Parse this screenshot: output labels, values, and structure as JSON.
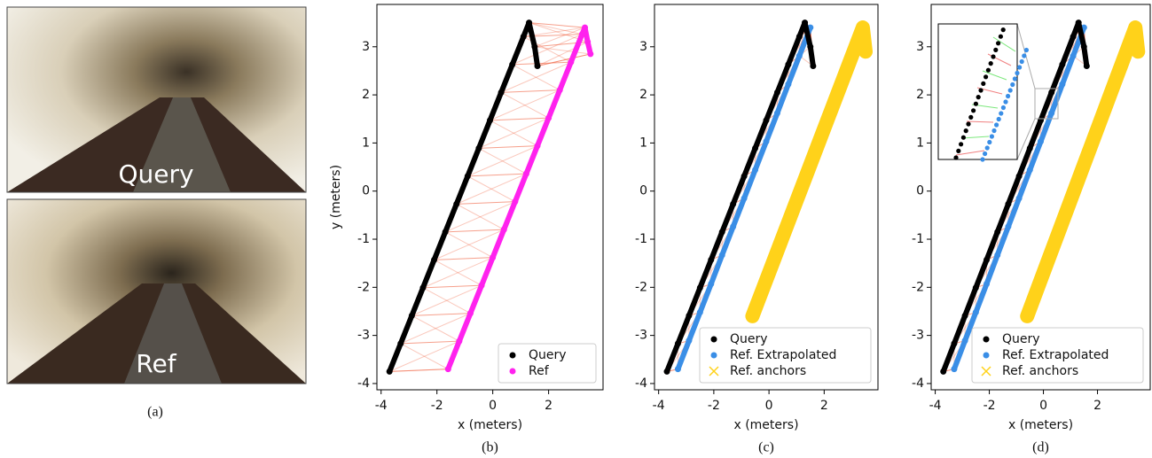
{
  "panel_a": {
    "images": [
      {
        "label": "Query"
      },
      {
        "label": "Ref"
      }
    ],
    "caption": "(a)"
  },
  "chart_data": [
    {
      "type": "scatter",
      "caption": "(b)",
      "xlabel": "x (meters)",
      "ylabel": "y (meters)",
      "xlim": [
        -4.15,
        3.95
      ],
      "ylim": [
        -4.13,
        3.88
      ],
      "xticks": [
        -4,
        -2,
        0,
        2
      ],
      "yticks": [
        -4,
        -3,
        -2,
        -1,
        0,
        1,
        2,
        3
      ],
      "legend": "lower right",
      "links_color": "#f06040",
      "series": [
        {
          "name": "Query",
          "color": "#000000",
          "marker": "o",
          "x": [
            -3.7,
            -3.3,
            -2.9,
            -2.5,
            -2.1,
            -1.7,
            -1.3,
            -0.9,
            -0.5,
            -0.1,
            0.3,
            0.7,
            1.1,
            1.3,
            1.5,
            1.6
          ],
          "y": [
            -3.75,
            -3.17,
            -2.59,
            -2.01,
            -1.43,
            -0.85,
            -0.27,
            0.31,
            0.89,
            1.47,
            2.05,
            2.63,
            3.21,
            3.5,
            3.0,
            2.6
          ]
        },
        {
          "name": "Ref",
          "color": "#ff22ee",
          "marker": "o",
          "x": [
            -1.6,
            -1.2,
            -0.8,
            -0.4,
            0,
            0.4,
            0.8,
            1.2,
            1.6,
            2.0,
            2.4,
            2.8,
            3.2,
            3.3,
            3.4,
            3.5
          ],
          "y": [
            -3.7,
            -3.12,
            -2.54,
            -1.96,
            -1.38,
            -0.8,
            -0.22,
            0.36,
            0.94,
            1.52,
            2.1,
            2.68,
            3.26,
            3.4,
            3.1,
            2.85
          ]
        }
      ]
    },
    {
      "type": "scatter",
      "caption": "(c)",
      "xlabel": "x (meters)",
      "xlim": [
        -4.15,
        3.95
      ],
      "ylim": [
        -4.13,
        3.88
      ],
      "xticks": [
        -4,
        -2,
        0,
        2
      ],
      "yticks": [
        -4,
        -3,
        -2,
        -1,
        0,
        1,
        2,
        3
      ],
      "legend": "lower right",
      "links_color": "#f06040",
      "series": [
        {
          "name": "Query",
          "color": "#000000",
          "marker": "o",
          "x": [
            -3.7,
            -3.3,
            -2.9,
            -2.5,
            -2.1,
            -1.7,
            -1.3,
            -0.9,
            -0.5,
            -0.1,
            0.3,
            0.7,
            1.1,
            1.3,
            1.5,
            1.6
          ],
          "y": [
            -3.75,
            -3.17,
            -2.59,
            -2.01,
            -1.43,
            -0.85,
            -0.27,
            0.31,
            0.89,
            1.47,
            2.05,
            2.63,
            3.21,
            3.5,
            3.0,
            2.6
          ]
        },
        {
          "name": "Ref. Extrapolated",
          "color": "#3a8ee6",
          "marker": "o",
          "x": [
            -3.3,
            -2.9,
            -2.5,
            -2.1,
            -1.7,
            -1.3,
            -0.9,
            -0.5,
            -0.1,
            0.3,
            0.7,
            1.1,
            1.5
          ],
          "y": [
            -3.7,
            -3.11,
            -2.52,
            -1.93,
            -1.33,
            -0.74,
            -0.15,
            0.44,
            1.03,
            1.62,
            2.22,
            2.81,
            3.4
          ]
        },
        {
          "name": "Ref. anchors",
          "color": "#ffd21a",
          "marker": "x",
          "x": [
            -0.6,
            -0.2,
            0.2,
            0.6,
            1.0,
            1.4,
            1.8,
            2.2,
            2.6,
            3.0,
            3.4,
            3.5
          ],
          "y": [
            -2.6,
            -2.0,
            -1.4,
            -0.8,
            -0.2,
            0.4,
            1.0,
            1.6,
            2.2,
            2.8,
            3.4,
            2.9
          ]
        }
      ]
    },
    {
      "type": "scatter",
      "caption": "(d)",
      "xlabel": "x (meters)",
      "xlim": [
        -4.15,
        3.95
      ],
      "ylim": [
        -4.13,
        3.88
      ],
      "xticks": [
        -4,
        -2,
        0,
        2
      ],
      "yticks": [
        -4,
        -3,
        -2,
        -1,
        0,
        1,
        2,
        3
      ],
      "legend": "lower right",
      "links_color": "#f06040",
      "series": [
        {
          "name": "Query",
          "color": "#000000",
          "marker": "o",
          "x": [
            -3.7,
            -3.3,
            -2.9,
            -2.5,
            -2.1,
            -1.7,
            -1.3,
            -0.9,
            -0.5,
            -0.1,
            0.3,
            0.7,
            1.1,
            1.3,
            1.5,
            1.6
          ],
          "y": [
            -3.75,
            -3.17,
            -2.59,
            -2.01,
            -1.43,
            -0.85,
            -0.27,
            0.31,
            0.89,
            1.47,
            2.05,
            2.63,
            3.21,
            3.5,
            3.0,
            2.6
          ]
        },
        {
          "name": "Ref. Extrapolated",
          "color": "#3a8ee6",
          "marker": "o",
          "x": [
            -3.3,
            -2.9,
            -2.5,
            -2.1,
            -1.7,
            -1.3,
            -0.9,
            -0.5,
            -0.1,
            0.3,
            0.7,
            1.1,
            1.5
          ],
          "y": [
            -3.7,
            -3.11,
            -2.52,
            -1.93,
            -1.33,
            -0.74,
            -0.15,
            0.44,
            1.03,
            1.62,
            2.22,
            2.81,
            3.4
          ]
        },
        {
          "name": "Ref. anchors",
          "color": "#ffd21a",
          "marker": "x",
          "x": [
            -0.6,
            -0.2,
            0.2,
            0.6,
            1.0,
            1.4,
            1.8,
            2.2,
            2.6,
            3.0,
            3.4,
            3.5
          ],
          "y": [
            -2.6,
            -2.0,
            -1.4,
            -0.8,
            -0.2,
            0.4,
            1.0,
            1.6,
            2.2,
            2.8,
            3.4,
            2.9
          ]
        }
      ]
    }
  ]
}
